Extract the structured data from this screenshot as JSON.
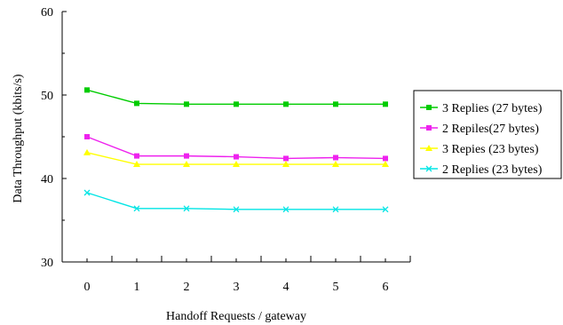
{
  "chart_data": {
    "type": "line",
    "xlabel": "Handoff Requests / gateway",
    "ylabel": "Data Throughput (kbits/s)",
    "x": [
      0,
      1,
      2,
      3,
      4,
      5,
      6
    ],
    "xlim": [
      -0.5,
      6.5
    ],
    "ylim": [
      30,
      60
    ],
    "yticks": [
      30,
      40,
      50,
      60
    ],
    "grid": false,
    "legend_position": "right",
    "series": [
      {
        "name": "3 Replies (27 bytes)",
        "color": "#00cc00",
        "marker": "square",
        "values": [
          50.6,
          49.0,
          48.9,
          48.9,
          48.9,
          48.9,
          48.9
        ]
      },
      {
        "name": "2 Repiles(27 bytes)",
        "color": "#ee22ee",
        "marker": "square",
        "values": [
          45.0,
          42.7,
          42.7,
          42.6,
          42.4,
          42.5,
          42.4
        ]
      },
      {
        "name": "3 Repies (23 bytes)",
        "color": "#ffff00",
        "marker": "triangle",
        "values": [
          43.1,
          41.7,
          41.7,
          41.7,
          41.7,
          41.7,
          41.7
        ]
      },
      {
        "name": "2 Replies (23 bytes)",
        "color": "#00e5e5",
        "marker": "x",
        "values": [
          38.3,
          36.4,
          36.4,
          36.3,
          36.3,
          36.3,
          36.3
        ]
      }
    ]
  }
}
